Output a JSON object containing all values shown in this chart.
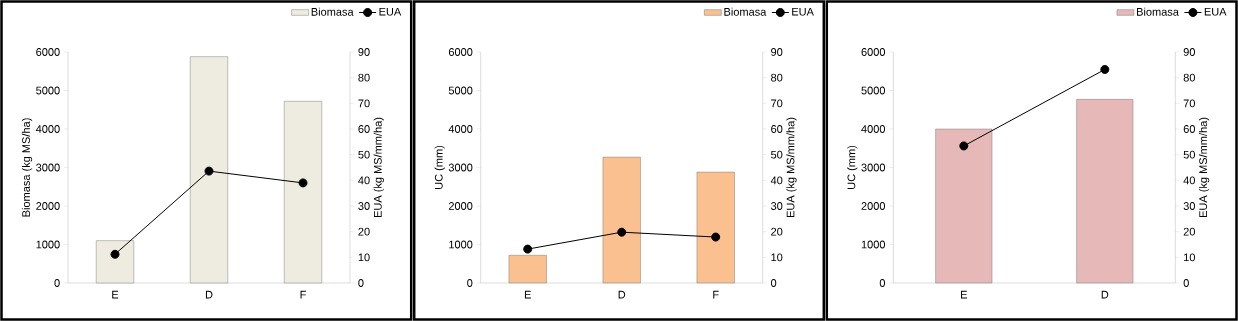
{
  "chart_data": [
    {
      "type": "bar",
      "categories": [
        "E",
        "D",
        "F"
      ],
      "ylabel": "Biomasa (kg MS/ha)",
      "y2label": "EUA (kg MS/mm/ha)",
      "ylim": [
        0,
        6000
      ],
      "yticks": [
        0,
        1000,
        2000,
        3000,
        4000,
        5000,
        6000
      ],
      "y2lim": [
        0,
        90
      ],
      "y2ticks": [
        0,
        10,
        20,
        30,
        40,
        50,
        60,
        70,
        80,
        90
      ],
      "legend": "top right",
      "series": [
        {
          "name": "Biomasa",
          "color": "#eeece1",
          "values": [
            1100,
            5880,
            4720
          ]
        },
        {
          "name": "EUA",
          "type": "line",
          "axis": "y2",
          "marker": "circle",
          "color": "#000000",
          "values": [
            11.2,
            43.6,
            39.0
          ]
        }
      ]
    },
    {
      "type": "bar",
      "categories": [
        "E",
        "D",
        "F"
      ],
      "ylabel": "UC (mm)",
      "y2label": "EUA (kg MS/mm/ha)",
      "ylim": [
        0,
        6000
      ],
      "yticks": [
        0,
        1000,
        2000,
        3000,
        4000,
        5000,
        6000
      ],
      "y2lim": [
        0,
        90
      ],
      "y2ticks": [
        0,
        10,
        20,
        30,
        40,
        50,
        60,
        70,
        80,
        90
      ],
      "legend": "top right",
      "series": [
        {
          "name": "Biomasa",
          "color": "#fac090",
          "values": [
            720,
            3270,
            2880
          ]
        },
        {
          "name": "EUA",
          "type": "line",
          "axis": "y2",
          "marker": "circle",
          "color": "#000000",
          "values": [
            13.2,
            19.8,
            17.9
          ]
        }
      ]
    },
    {
      "type": "bar",
      "categories": [
        "E",
        "D"
      ],
      "ylabel": "UC (mm)",
      "y2label": "EUA (kg MS/mm/ha)",
      "ylim": [
        0,
        6000
      ],
      "yticks": [
        0,
        1000,
        2000,
        3000,
        4000,
        5000,
        6000
      ],
      "y2lim": [
        0,
        90
      ],
      "y2ticks": [
        0,
        10,
        20,
        30,
        40,
        50,
        60,
        70,
        80,
        90
      ],
      "legend": "top right",
      "series": [
        {
          "name": "Biomasa",
          "color": "#e6b9b8",
          "values": [
            4000,
            4770
          ]
        },
        {
          "name": "EUA",
          "type": "line",
          "axis": "y2",
          "marker": "circle",
          "color": "#000000",
          "values": [
            53.4,
            83.2
          ]
        }
      ]
    }
  ]
}
